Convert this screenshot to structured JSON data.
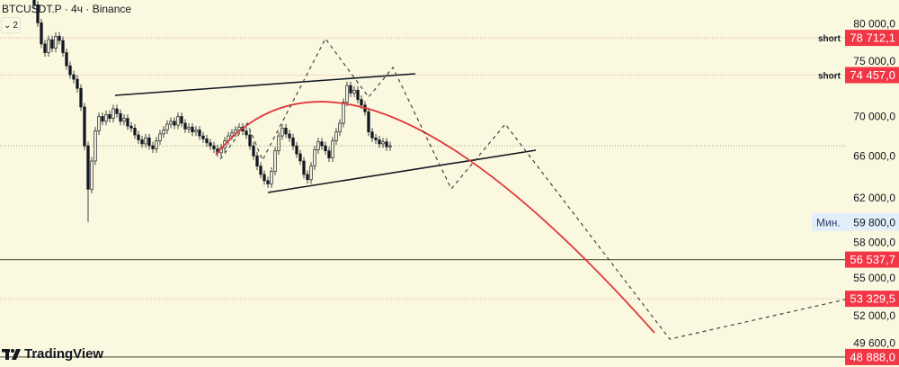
{
  "header": {
    "symbol_title": "BTCUSDT.P · 4ч · Binance",
    "indicators_toggle": "2",
    "toggle_icon": "chevron-down-icon"
  },
  "branding": {
    "logo_text": "TradingView"
  },
  "colors": {
    "background": "#faf8de",
    "label_red": "#f23645",
    "candle": "#131722",
    "arc": "#e0393e",
    "min_label_bg": "#e3eefb"
  },
  "chart_data": {
    "type": "candlestick",
    "title": "BTCUSDT.P · 4ч · Binance",
    "y_scale": "log",
    "ylim": [
      48500,
      84000
    ],
    "grid": false,
    "y_ticks": [
      "80 000,0",
      "75 000,0",
      "70 000,0",
      "66 000,0",
      "62 000,0",
      "58 000,0",
      "55 000,0",
      "52 000,0",
      "49 600,0"
    ],
    "y_tick_values": [
      80000,
      75000,
      70000,
      66000,
      62000,
      58000,
      55000,
      52000,
      49600
    ],
    "closes": [
      82700,
      80500,
      78000,
      77000,
      78500,
      77500,
      78900,
      78400,
      77000,
      75500,
      74500,
      74000,
      73000,
      71000,
      67000,
      62800,
      65500,
      68500,
      70000,
      69500,
      70200,
      69800,
      70800,
      70300,
      69500,
      69800,
      69000,
      68800,
      68100,
      67600,
      67200,
      67800,
      67000,
      66700,
      67500,
      68200,
      68600,
      69200,
      69500,
      69100,
      70000,
      69300,
      68700,
      68900,
      68400,
      68600,
      68000,
      67700,
      67300,
      67000,
      66700,
      66300,
      66800,
      67500,
      68000,
      68300,
      68600,
      68900,
      68500,
      68100,
      67000,
      66000,
      65000,
      64200,
      63600,
      63300,
      64500,
      66500,
      68000,
      68800,
      68200,
      67800,
      67000,
      66200,
      65500,
      64200,
      63700,
      65000,
      66600,
      67400,
      67000,
      66500,
      65800,
      67500,
      68400,
      69300,
      71500,
      73300,
      72500,
      72800,
      71800,
      71200,
      70500,
      68400,
      67800,
      67600,
      67200,
      67400,
      66900,
      67000
    ],
    "min_marker": {
      "label": "Мин.",
      "value": "59 800,0",
      "price": 59800
    },
    "current_price": 67000,
    "levels": [
      {
        "price": 78712.1,
        "label": "78 712,1",
        "note": "short",
        "style": "red-dotted"
      },
      {
        "price": 74457.0,
        "label": "74 457,0",
        "note": "short",
        "style": "red-dotted"
      },
      {
        "price": 56537.7,
        "label": "56 537,7",
        "note": "",
        "style": "solid"
      },
      {
        "price": 53329.5,
        "label": "53 329,5",
        "note": "",
        "style": "red-dotted"
      },
      {
        "price": 48888.0,
        "label": "48 888,0",
        "note": "",
        "style": "solid"
      }
    ]
  }
}
